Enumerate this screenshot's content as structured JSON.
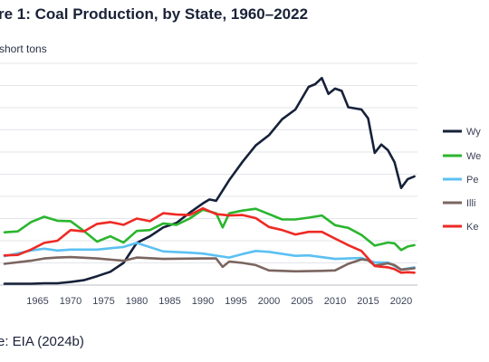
{
  "title": "re 1: Coal Production, by State, 1960–2022",
  "unit_label": "short tons",
  "source": "e: EIA (2024b)",
  "chart_data": {
    "type": "line",
    "x_ticks": [
      1965,
      1970,
      1975,
      1980,
      1985,
      1990,
      1995,
      2000,
      2005,
      2010,
      2015,
      2020
    ],
    "xlim": [
      1960,
      2022
    ],
    "ylim": [
      0,
      500
    ],
    "grid": true,
    "legend_position": "right",
    "series": [
      {
        "name": "Wy",
        "color": "#16213a",
        "x": [
          1960,
          1962,
          1964,
          1966,
          1968,
          1970,
          1972,
          1974,
          1976,
          1978,
          1980,
          1982,
          1984,
          1986,
          1988,
          1990,
          1991,
          1992,
          1994,
          1996,
          1998,
          2000,
          2002,
          2004,
          2006,
          2007,
          2008,
          2009,
          2010,
          2011,
          2012,
          2014,
          2015,
          2016,
          2017,
          2018,
          2019,
          2020,
          2021,
          2022
        ],
        "y": [
          3,
          3,
          3,
          4,
          4,
          7,
          11,
          20,
          30,
          50,
          95,
          110,
          130,
          140,
          163,
          184,
          193,
          190,
          237,
          278,
          315,
          338,
          374,
          396,
          447,
          453,
          467,
          431,
          443,
          438,
          401,
          396,
          376,
          298,
          317,
          304,
          277,
          219,
          239,
          245
        ]
      },
      {
        "name": "We",
        "color": "#2bb52e",
        "x": [
          1960,
          1962,
          1964,
          1966,
          1968,
          1970,
          1972,
          1974,
          1976,
          1978,
          1980,
          1982,
          1984,
          1986,
          1988,
          1990,
          1992,
          1993,
          1994,
          1996,
          1998,
          2000,
          2002,
          2004,
          2006,
          2008,
          2010,
          2012,
          2014,
          2016,
          2018,
          2019,
          2020,
          2021,
          2022
        ],
        "y": [
          119,
          121,
          142,
          154,
          145,
          144,
          122,
          98,
          110,
          96,
          122,
          124,
          139,
          136,
          150,
          170,
          162,
          130,
          162,
          168,
          172,
          160,
          148,
          148,
          152,
          157,
          135,
          129,
          113,
          89,
          96,
          94,
          79,
          87,
          90
        ]
      },
      {
        "name": "Pe",
        "color": "#5bc0f2",
        "x": [
          1960,
          1964,
          1966,
          1968,
          1970,
          1974,
          1978,
          1980,
          1984,
          1988,
          1990,
          1994,
          1996,
          1998,
          2000,
          2004,
          2006,
          2010,
          2014,
          2016,
          2018,
          2020,
          2022
        ],
        "y": [
          65,
          78,
          82,
          78,
          80,
          80,
          86,
          95,
          76,
          73,
          71,
          62,
          70,
          77,
          75,
          66,
          67,
          59,
          61,
          51,
          51,
          35,
          40
        ]
      },
      {
        "name": "Illi",
        "color": "#7b6560",
        "x": [
          1960,
          1964,
          1966,
          1968,
          1970,
          1974,
          1978,
          1980,
          1984,
          1990,
          1992,
          1993,
          1994,
          1996,
          1998,
          2000,
          2004,
          2008,
          2010,
          2012,
          2014,
          2015,
          2016,
          2018,
          2019,
          2020,
          2022
        ],
        "y": [
          48,
          55,
          60,
          62,
          63,
          60,
          55,
          62,
          59,
          60,
          60,
          41,
          53,
          50,
          45,
          33,
          31,
          32,
          33,
          48,
          58,
          56,
          44,
          49,
          45,
          35,
          38
        ]
      },
      {
        "name": "Ke",
        "color": "#ee2a24",
        "x": [
          1960,
          1962,
          1964,
          1966,
          1968,
          1970,
          1972,
          1974,
          1976,
          1978,
          1980,
          1982,
          1984,
          1986,
          1988,
          1990,
          1992,
          1994,
          1996,
          1998,
          2000,
          2002,
          2004,
          2006,
          2008,
          2010,
          2012,
          2014,
          2016,
          2018,
          2019,
          2020,
          2021,
          2022
        ],
        "y": [
          67,
          68,
          80,
          95,
          100,
          124,
          121,
          138,
          142,
          136,
          150,
          144,
          162,
          159,
          158,
          173,
          160,
          157,
          158,
          151,
          131,
          124,
          114,
          120,
          120,
          105,
          90,
          77,
          43,
          40,
          36,
          28,
          29,
          28
        ]
      }
    ]
  }
}
